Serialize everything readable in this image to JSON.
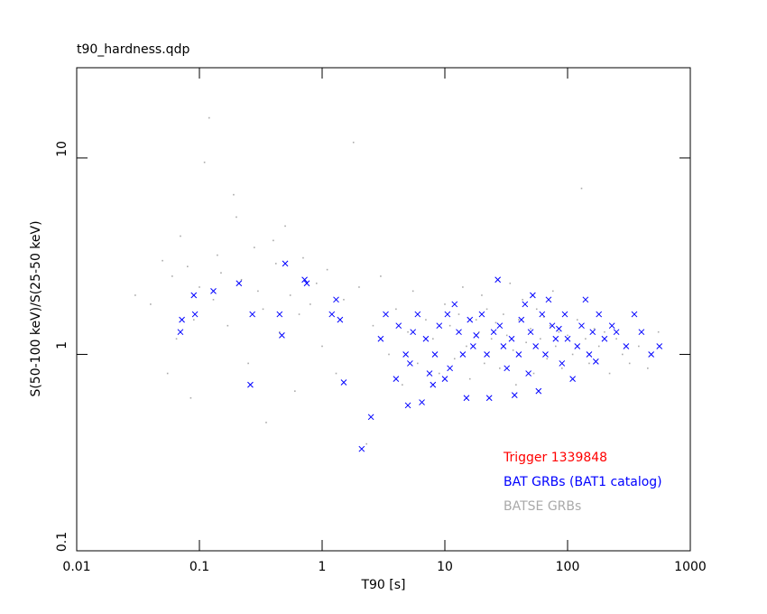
{
  "chart_data": {
    "type": "scatter",
    "title": "t90_hardness.qdp",
    "x_label": "T90 [s]",
    "y_label": "S(50-100 keV)/S(25-50 keV)",
    "xscale": "log",
    "yscale": "log",
    "xlim": [
      0.01,
      1000
    ],
    "ylim": [
      0.1,
      28.8
    ],
    "xticks": [
      0.01,
      0.1,
      1,
      10,
      100,
      1000
    ],
    "yticks": [
      0.1,
      1,
      10
    ],
    "legend": "lower right",
    "series": [
      {
        "name": "Trigger 1339848",
        "color": "#ff0000",
        "marker": "x",
        "x": [],
        "y": []
      },
      {
        "name": "BAT GRBs (BAT1 catalog)",
        "color": "#0000ff",
        "marker": "x",
        "x": [
          0.07,
          0.072,
          0.09,
          0.092,
          0.13,
          0.21,
          0.26,
          0.27,
          0.45,
          0.47,
          0.5,
          0.72,
          0.75,
          1.2,
          1.3,
          1.4,
          1.5,
          2.1,
          2.5,
          3,
          3.3,
          4,
          4.2,
          4.8,
          5,
          5.2,
          5.5,
          6,
          6.5,
          7,
          7.5,
          8,
          8.3,
          9,
          10,
          10.5,
          11,
          12,
          13,
          14,
          15,
          16,
          17,
          18,
          20,
          22,
          23,
          25,
          27,
          28,
          30,
          32,
          35,
          37,
          40,
          42,
          45,
          48,
          50,
          52,
          55,
          58,
          62,
          66,
          70,
          75,
          80,
          85,
          90,
          95,
          100,
          110,
          120,
          130,
          140,
          150,
          160,
          170,
          180,
          200,
          230,
          250,
          300,
          350,
          400,
          480,
          560
        ],
        "y": [
          1.3,
          1.5,
          2.0,
          1.6,
          2.1,
          2.3,
          0.7,
          1.6,
          1.6,
          1.25,
          2.9,
          2.4,
          2.3,
          1.6,
          1.9,
          1.5,
          0.72,
          0.33,
          0.48,
          1.2,
          1.6,
          0.75,
          1.4,
          1.0,
          0.55,
          0.9,
          1.3,
          1.6,
          0.57,
          1.2,
          0.8,
          0.7,
          1.0,
          1.4,
          0.75,
          1.6,
          0.85,
          1.8,
          1.3,
          1.0,
          0.6,
          1.5,
          1.1,
          1.25,
          1.6,
          1.0,
          0.6,
          1.3,
          2.4,
          1.4,
          1.1,
          0.85,
          1.2,
          0.62,
          1.0,
          1.5,
          1.8,
          0.8,
          1.3,
          2.0,
          1.1,
          0.65,
          1.6,
          1.0,
          1.9,
          1.4,
          1.2,
          1.35,
          0.9,
          1.6,
          1.2,
          0.75,
          1.1,
          1.4,
          1.9,
          1.0,
          1.3,
          0.92,
          1.6,
          1.2,
          1.4,
          1.3,
          1.1,
          1.6,
          1.3,
          1.0,
          1.1
        ]
      },
      {
        "name": "BATSE GRBs",
        "color": "#aaaaaa",
        "marker": "dot",
        "x": [
          0.03,
          0.04,
          0.05,
          0.055,
          0.06,
          0.065,
          0.07,
          0.08,
          0.085,
          0.09,
          0.1,
          0.11,
          0.12,
          0.13,
          0.14,
          0.15,
          0.17,
          0.19,
          0.2,
          0.22,
          0.25,
          0.28,
          0.3,
          0.33,
          0.35,
          0.4,
          0.42,
          0.45,
          0.5,
          0.55,
          0.6,
          0.65,
          0.7,
          0.8,
          0.9,
          1.0,
          1.1,
          1.3,
          1.5,
          1.8,
          2.0,
          2.3,
          2.6,
          3.0,
          3.5,
          4,
          4.5,
          5,
          5.5,
          6,
          7,
          8,
          9,
          10,
          11,
          12,
          13,
          14,
          15,
          16,
          18,
          19,
          20,
          21,
          22,
          24,
          26,
          28,
          30,
          32,
          34,
          36,
          38,
          40,
          43,
          46,
          50,
          53,
          56,
          60,
          64,
          68,
          72,
          76,
          80,
          85,
          90,
          95,
          100,
          110,
          120,
          130,
          140,
          150,
          165,
          180,
          200,
          220,
          250,
          280,
          320,
          380,
          450,
          550
        ],
        "y": [
          2.0,
          1.8,
          3.0,
          0.8,
          2.5,
          1.2,
          4.0,
          2.8,
          0.6,
          1.5,
          2.2,
          9.5,
          16,
          1.9,
          3.2,
          2.6,
          1.4,
          6.5,
          5,
          2.4,
          0.9,
          3.5,
          2.1,
          1.7,
          0.45,
          3.8,
          2.9,
          1.3,
          4.5,
          2.0,
          0.65,
          1.6,
          3.1,
          1.8,
          2.3,
          1.1,
          2.7,
          0.8,
          1.9,
          12,
          2.2,
          0.35,
          1.4,
          2.5,
          1.0,
          1.7,
          0.7,
          1.3,
          2.1,
          0.9,
          1.5,
          1.2,
          0.8,
          1.8,
          1.4,
          0.95,
          1.6,
          2.2,
          1.1,
          0.75,
          1.5,
          1.3,
          2.0,
          0.9,
          1.7,
          1.2,
          1.45,
          0.85,
          1.6,
          1.25,
          2.3,
          1.05,
          0.7,
          1.5,
          1.9,
          1.15,
          1.35,
          0.8,
          1.7,
          1.2,
          1.55,
          0.95,
          1.4,
          2.1,
          1.1,
          1.3,
          0.85,
          1.6,
          1.25,
          1.0,
          1.5,
          7,
          1.2,
          0.9,
          1.35,
          1.1,
          1.3,
          0.8,
          1.2,
          1.0,
          0.9,
          1.1,
          0.85,
          1.3
        ]
      }
    ]
  }
}
